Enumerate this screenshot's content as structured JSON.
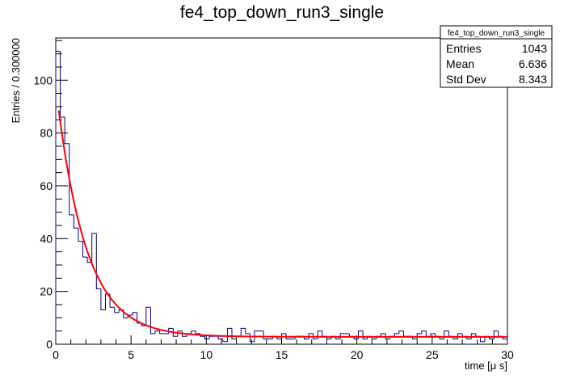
{
  "chart_data": {
    "type": "histogram",
    "title": "fe4_top_down_run3_single",
    "xlabel": "time [μ s]",
    "ylabel": "Entries / 0.300000",
    "xlim": [
      0,
      30
    ],
    "ylim": [
      0,
      116
    ],
    "bin_width": 0.3,
    "x_ticks": [
      0,
      5,
      10,
      15,
      20,
      25,
      30
    ],
    "y_ticks": [
      0,
      20,
      40,
      60,
      80,
      100
    ],
    "grid": false,
    "histogram_color": "#000080",
    "fit_color": "#ff0000",
    "bin_contents": [
      111,
      86,
      76,
      49,
      44,
      39,
      33,
      31,
      42,
      21,
      13,
      19,
      14,
      12,
      13,
      10,
      11,
      12,
      8,
      7,
      14,
      4,
      5,
      4,
      4,
      6,
      3,
      5,
      3,
      4,
      5,
      4,
      3,
      2,
      3,
      3,
      2,
      1,
      6,
      2,
      3,
      6,
      4,
      1,
      5,
      5,
      2,
      2,
      3,
      2,
      4,
      2,
      2,
      3,
      3,
      2,
      4,
      2,
      5,
      3,
      2,
      3,
      2,
      4,
      4,
      3,
      2,
      5,
      2,
      3,
      2,
      3,
      4,
      2,
      3,
      4,
      5,
      3,
      3,
      2,
      4,
      5,
      3,
      4,
      3,
      2,
      5,
      3,
      2,
      4,
      3,
      2,
      4,
      3,
      1,
      3,
      2,
      5,
      3,
      2
    ],
    "fit": {
      "function": "A*exp(-x/tau)+C",
      "A": 95,
      "tau": 1.95,
      "C": 2.8,
      "x_range": [
        0.2,
        30
      ]
    },
    "stats_box": {
      "name": "fe4_top_down_run3_single",
      "rows": [
        {
          "label": "Entries",
          "value": "1043"
        },
        {
          "label": "Mean",
          "value": "6.636"
        },
        {
          "label": "Std Dev",
          "value": "8.343"
        }
      ]
    }
  }
}
